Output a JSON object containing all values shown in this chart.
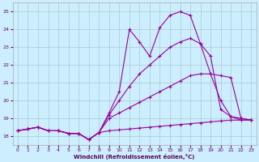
{
  "xlabel": "Windchill (Refroidissement éolien,°C)",
  "bg_color": "#cceeff",
  "line_color": "#990099",
  "xlim": [
    -0.5,
    23.5
  ],
  "ylim": [
    17.5,
    25.5
  ],
  "xticks": [
    0,
    1,
    2,
    3,
    4,
    5,
    6,
    7,
    8,
    9,
    10,
    11,
    12,
    13,
    14,
    15,
    16,
    17,
    18,
    19,
    20,
    21,
    22,
    23
  ],
  "yticks": [
    18,
    19,
    20,
    21,
    22,
    23,
    24,
    25
  ],
  "s0_y": [
    18.3,
    18.4,
    18.5,
    18.3,
    18.3,
    18.15,
    18.15,
    17.8,
    18.2,
    18.3,
    18.35,
    18.4,
    18.45,
    18.5,
    18.55,
    18.6,
    18.65,
    18.7,
    18.75,
    18.8,
    18.85,
    18.9,
    18.9,
    18.9
  ],
  "s1_y": [
    18.3,
    18.4,
    18.5,
    18.3,
    18.3,
    18.15,
    18.15,
    17.8,
    18.2,
    19.0,
    19.3,
    19.6,
    19.9,
    20.2,
    20.5,
    20.8,
    21.1,
    21.4,
    21.5,
    21.5,
    21.4,
    21.3,
    19.0,
    18.9
  ],
  "s2_y": [
    18.3,
    18.4,
    18.5,
    18.3,
    18.3,
    18.15,
    18.15,
    17.8,
    18.2,
    19.2,
    20.0,
    20.8,
    21.5,
    22.0,
    22.5,
    23.0,
    23.3,
    23.5,
    23.2,
    22.5,
    19.5,
    19.1,
    19.0,
    18.9
  ],
  "s3_y": [
    18.3,
    18.4,
    18.5,
    18.3,
    18.3,
    18.15,
    18.15,
    17.8,
    18.2,
    19.3,
    20.5,
    24.0,
    23.3,
    22.5,
    24.1,
    24.8,
    25.0,
    24.8,
    23.2,
    21.5,
    20.0,
    19.1,
    18.9,
    18.9
  ]
}
